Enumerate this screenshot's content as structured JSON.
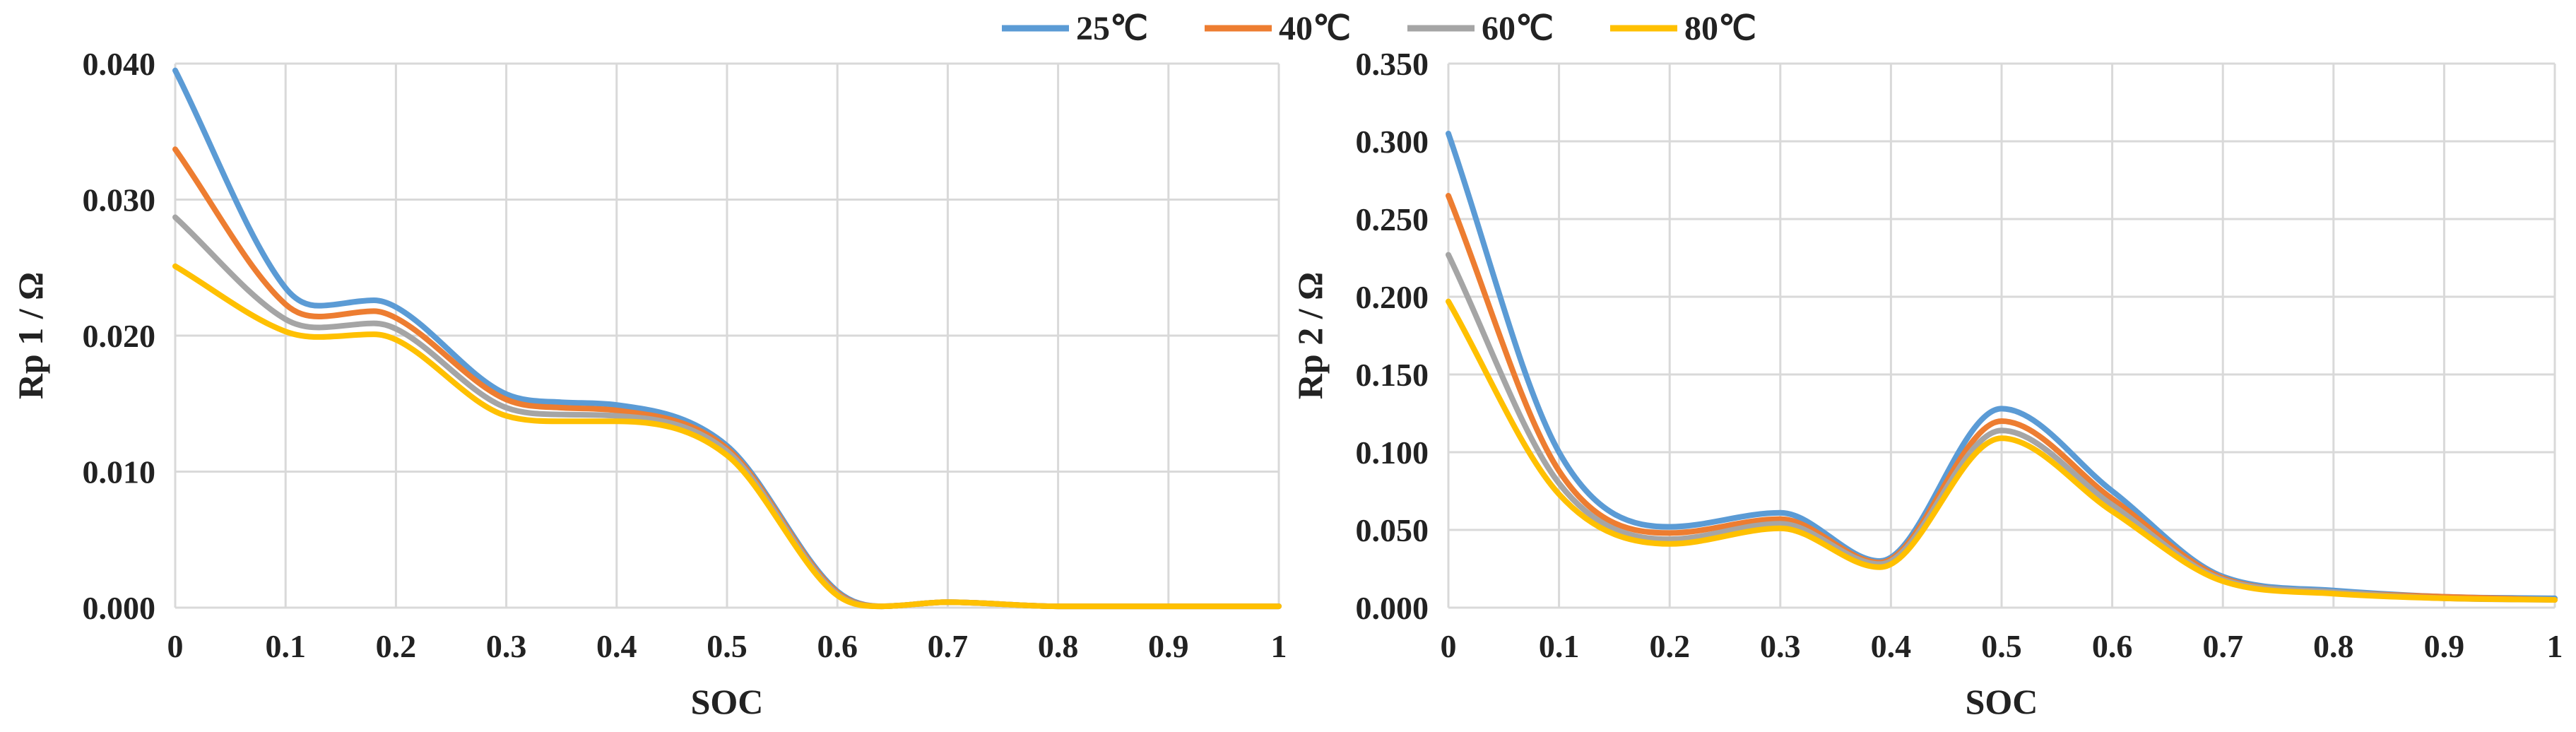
{
  "legend": [
    {
      "label": "25℃",
      "color": "#5B9BD5"
    },
    {
      "label": "40℃",
      "color": "#ED7D31"
    },
    {
      "label": "60℃",
      "color": "#A5A5A5"
    },
    {
      "label": "80℃",
      "color": "#FFC000"
    }
  ],
  "chart_data": [
    {
      "type": "line",
      "xlabel": "SOC",
      "ylabel": "Rp 1 / Ω",
      "xlim": [
        0,
        1
      ],
      "ylim": [
        0,
        0.04
      ],
      "x_ticks": [
        "0",
        "0.1",
        "0.2",
        "0.3",
        "0.4",
        "0.5",
        "0.6",
        "0.7",
        "0.8",
        "0.9",
        "1"
      ],
      "y_ticks": [
        "0.000",
        "0.010",
        "0.020",
        "0.030",
        "0.040"
      ],
      "x": [
        0,
        0.1,
        0.13,
        0.18,
        0.2,
        0.3,
        0.35,
        0.4,
        0.5,
        0.6,
        0.64,
        0.7,
        0.8,
        0.9,
        1
      ],
      "series": [
        {
          "name": "25℃",
          "values": [
            0.0395,
            0.0235,
            0.0222,
            0.0226,
            0.0221,
            0.0157,
            0.0151,
            0.0149,
            0.0119,
            0.0012,
            0.0001,
            0.0004,
            0.0001,
            0.0001,
            0.0001
          ]
        },
        {
          "name": "40℃",
          "values": [
            0.0337,
            0.0223,
            0.0214,
            0.0218,
            0.0213,
            0.0153,
            0.0147,
            0.0145,
            0.0117,
            0.0011,
            0.0001,
            0.0004,
            0.0001,
            0.0001,
            0.0001
          ]
        },
        {
          "name": "60℃",
          "values": [
            0.0287,
            0.0212,
            0.0206,
            0.0209,
            0.0205,
            0.0147,
            0.0142,
            0.0141,
            0.0115,
            0.001,
            0.0001,
            0.0004,
            0.0001,
            0.0001,
            0.0001
          ]
        },
        {
          "name": "80℃",
          "values": [
            0.0251,
            0.0203,
            0.0199,
            0.0201,
            0.0197,
            0.0141,
            0.0137,
            0.0137,
            0.0112,
            0.0009,
            0.0001,
            0.0004,
            0.0001,
            0.0001,
            0.0001
          ]
        }
      ]
    },
    {
      "type": "line",
      "xlabel": "SOC",
      "ylabel": "Rp 2 / Ω",
      "xlim": [
        0,
        1
      ],
      "ylim": [
        0,
        0.35
      ],
      "x_ticks": [
        "0",
        "0.1",
        "0.2",
        "0.3",
        "0.4",
        "0.5",
        "0.6",
        "0.7",
        "0.8",
        "0.9",
        "1"
      ],
      "y_ticks": [
        "0.000",
        "0.050",
        "0.100",
        "0.150",
        "0.200",
        "0.250",
        "0.300",
        "0.350"
      ],
      "x": [
        0,
        0.1,
        0.2,
        0.3,
        0.39,
        0.5,
        0.6,
        0.7,
        0.8,
        0.9,
        1
      ],
      "series": [
        {
          "name": "25℃",
          "values": [
            0.305,
            0.1,
            0.052,
            0.061,
            0.03,
            0.128,
            0.075,
            0.02,
            0.011,
            0.007,
            0.006
          ]
        },
        {
          "name": "40℃",
          "values": [
            0.265,
            0.088,
            0.048,
            0.057,
            0.029,
            0.12,
            0.07,
            0.019,
            0.01,
            0.007,
            0.005
          ]
        },
        {
          "name": "60℃",
          "values": [
            0.227,
            0.08,
            0.044,
            0.054,
            0.028,
            0.114,
            0.066,
            0.018,
            0.01,
            0.006,
            0.005
          ]
        },
        {
          "name": "80℃",
          "values": [
            0.197,
            0.073,
            0.041,
            0.051,
            0.026,
            0.109,
            0.062,
            0.017,
            0.009,
            0.006,
            0.005
          ]
        }
      ]
    }
  ]
}
